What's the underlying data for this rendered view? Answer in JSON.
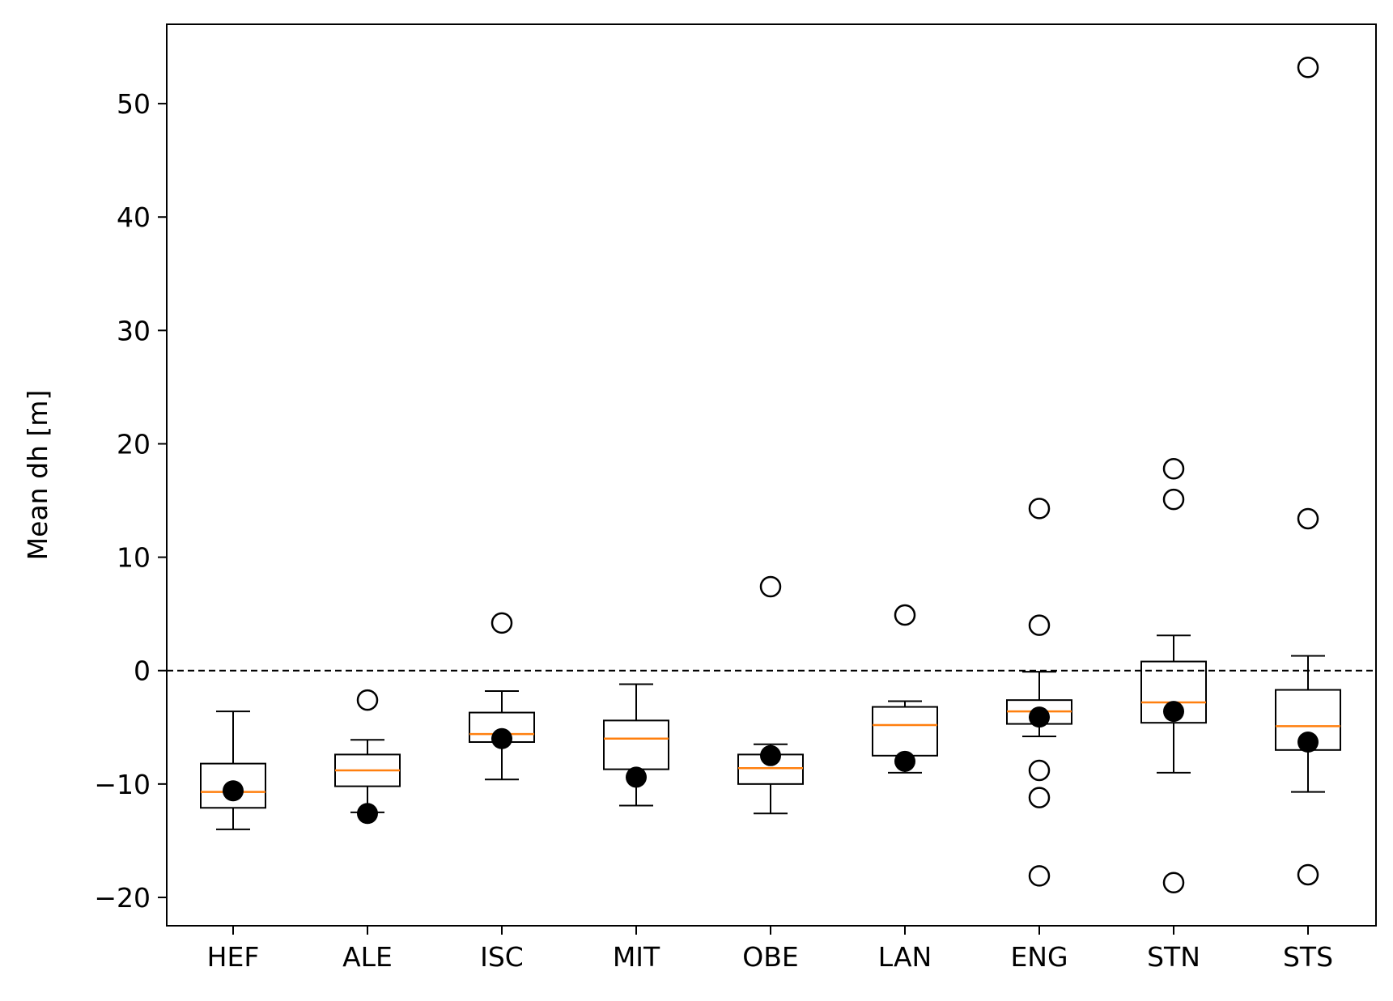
{
  "chart_data": {
    "type": "box",
    "title": "",
    "xlabel": "",
    "ylabel": "Mean dh [m]",
    "ylim": [
      -22.5,
      57
    ],
    "yticks": [
      -20,
      -10,
      0,
      10,
      20,
      30,
      40,
      50
    ],
    "ytick_labels": [
      "−20",
      "−10",
      "0",
      "10",
      "20",
      "30",
      "40",
      "50"
    ],
    "reference_line": {
      "y": 0,
      "style": "dashed",
      "color": "#000000"
    },
    "median_color": "#ff7f0e",
    "box_color": "#000000",
    "grid": false,
    "legend": "none",
    "categories": [
      "HEF",
      "ALE",
      "ISC",
      "MIT",
      "OBE",
      "LAN",
      "ENG",
      "STN",
      "STS"
    ],
    "boxes": [
      {
        "label": "HEF",
        "whisker_low": -14.0,
        "q1": -12.1,
        "median": -10.7,
        "q3": -8.2,
        "whisker_high": -3.6,
        "mean": -10.6,
        "outliers": []
      },
      {
        "label": "ALE",
        "whisker_low": -12.5,
        "q1": -10.2,
        "median": -8.8,
        "q3": -7.4,
        "whisker_high": -6.1,
        "mean": -12.6,
        "outliers": [
          -2.6
        ]
      },
      {
        "label": "ISC",
        "whisker_low": -9.6,
        "q1": -6.3,
        "median": -5.6,
        "q3": -3.7,
        "whisker_high": -1.8,
        "mean": -6.0,
        "outliers": [
          4.2
        ]
      },
      {
        "label": "MIT",
        "whisker_low": -11.9,
        "q1": -8.7,
        "median": -6.0,
        "q3": -4.4,
        "whisker_high": -1.2,
        "mean": -9.4,
        "outliers": []
      },
      {
        "label": "OBE",
        "whisker_low": -12.6,
        "q1": -10.0,
        "median": -8.6,
        "q3": -7.4,
        "whisker_high": -6.5,
        "mean": -7.5,
        "outliers": [
          7.4
        ]
      },
      {
        "label": "LAN",
        "whisker_low": -9.0,
        "q1": -7.5,
        "median": -4.8,
        "q3": -3.2,
        "whisker_high": -2.7,
        "mean": -8.0,
        "outliers": [
          4.9
        ]
      },
      {
        "label": "ENG",
        "whisker_low": -5.8,
        "q1": -4.7,
        "median": -3.6,
        "q3": -2.6,
        "whisker_high": -0.1,
        "mean": -4.1,
        "outliers": [
          14.3,
          4.0,
          -8.8,
          -11.2,
          -18.1
        ]
      },
      {
        "label": "STN",
        "whisker_low": -9.0,
        "q1": -4.6,
        "median": -2.8,
        "q3": 0.8,
        "whisker_high": 3.1,
        "mean": -3.6,
        "outliers": [
          17.8,
          15.1,
          -18.7
        ]
      },
      {
        "label": "STS",
        "whisker_low": -10.7,
        "q1": -7.0,
        "median": -4.9,
        "q3": -1.7,
        "whisker_high": 1.3,
        "mean": -6.3,
        "outliers": [
          53.2,
          13.4,
          -18.0
        ]
      }
    ]
  }
}
